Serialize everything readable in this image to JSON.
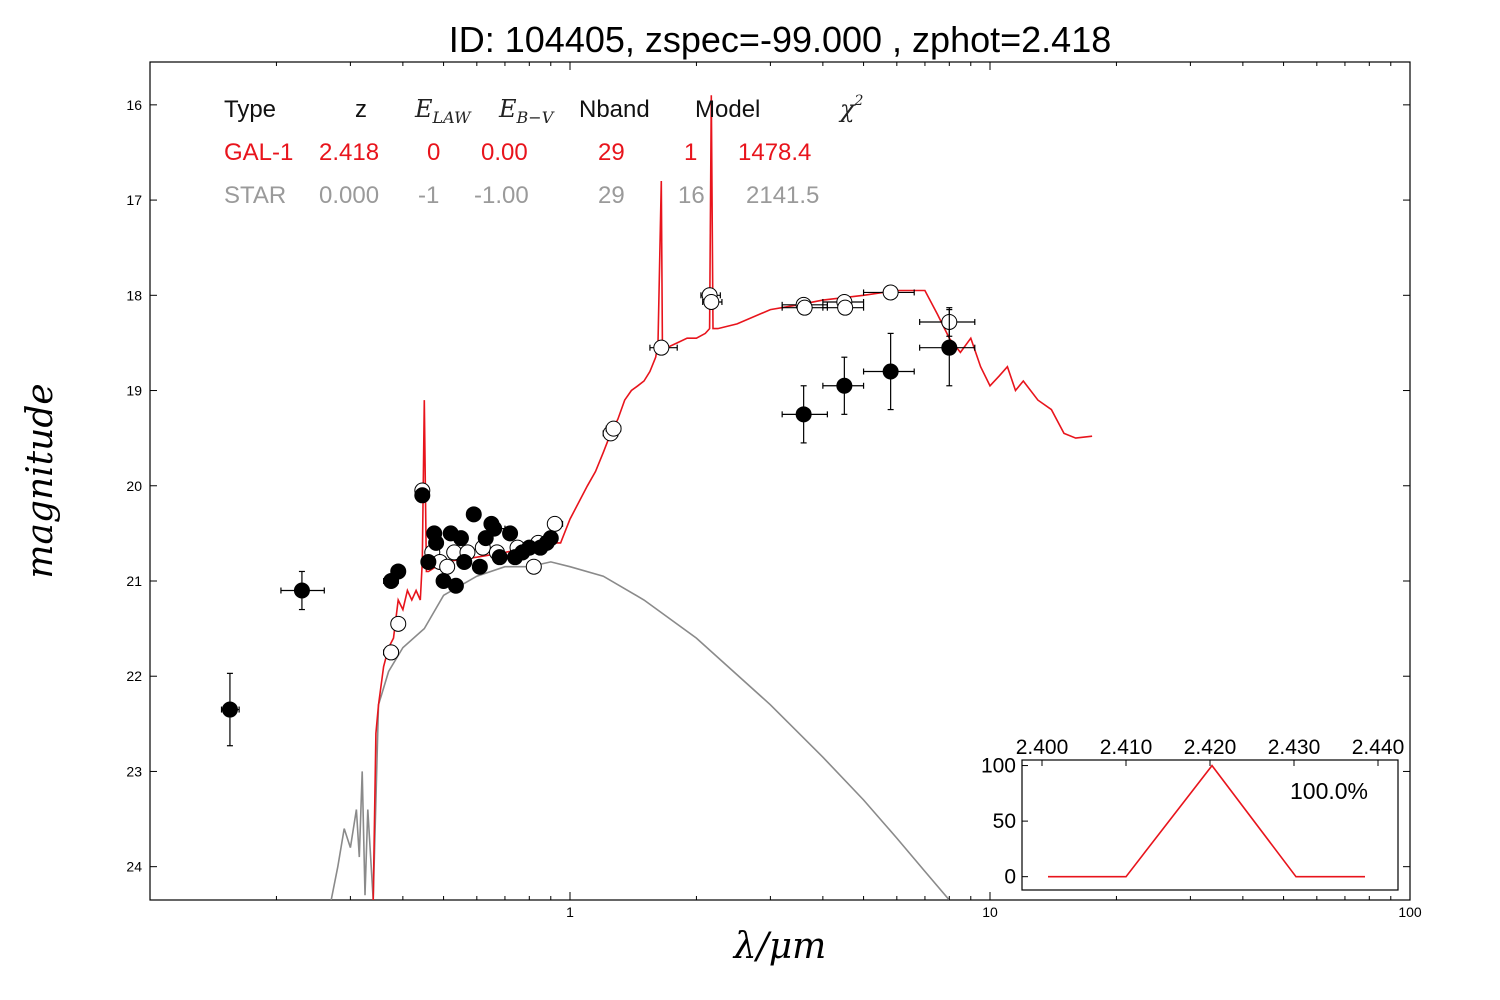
{
  "chart_data": {
    "type": "scatter",
    "title": "ID:  104405, zspec=-99.000 , zphot=2.418",
    "xlabel": "λ/μm",
    "ylabel": "magnitude",
    "x_scale": "log",
    "xlim": [
      0.1,
      100
    ],
    "ylim": [
      24.35,
      15.55
    ],
    "y_inverted": true,
    "x_ticks": [
      {
        "value": 1,
        "label": "1"
      },
      {
        "value": 10,
        "label": "10"
      },
      {
        "value": 100,
        "label": "100"
      }
    ],
    "y_ticks": [
      {
        "value": 16,
        "label": "16"
      },
      {
        "value": 17,
        "label": "17"
      },
      {
        "value": 18,
        "label": "18"
      },
      {
        "value": 19,
        "label": "19"
      },
      {
        "value": 20,
        "label": "20"
      },
      {
        "value": 21,
        "label": "21"
      },
      {
        "value": 22,
        "label": "22"
      },
      {
        "value": 23,
        "label": "23"
      },
      {
        "value": 24,
        "label": "24"
      }
    ],
    "colors": {
      "galaxy": "#e8141c",
      "star": "#8a8a8a",
      "star_text": "#9a9a9a",
      "points": "#000000"
    },
    "fit_table": {
      "headers": [
        "Type",
        "z",
        "E_LAW",
        "E_B−V",
        "Nband",
        "Model",
        "χ²"
      ],
      "rows": [
        {
          "type": "GAL-1",
          "z": "2.418",
          "elaw": "0",
          "ebv": "0.00",
          "nband": "29",
          "model": "1",
          "chi2": "1478.4",
          "color": "#e8141c"
        },
        {
          "type": "STAR",
          "z": "0.000",
          "elaw": "-1",
          "ebv": "-1.00",
          "nband": "29",
          "model": "16",
          "chi2": "2141.5",
          "color": "#9a9a9a"
        }
      ]
    },
    "galaxy_model_curve": [
      [
        0.34,
        24.35
      ],
      [
        0.345,
        22.6
      ],
      [
        0.35,
        22.3
      ],
      [
        0.36,
        21.9
      ],
      [
        0.37,
        21.7
      ],
      [
        0.38,
        21.6
      ],
      [
        0.39,
        21.2
      ],
      [
        0.4,
        21.3
      ],
      [
        0.41,
        21.1
      ],
      [
        0.42,
        21.2
      ],
      [
        0.43,
        21.1
      ],
      [
        0.44,
        21.2
      ],
      [
        0.445,
        20.8
      ],
      [
        0.45,
        19.1
      ],
      [
        0.455,
        20.9
      ],
      [
        0.46,
        20.9
      ],
      [
        0.5,
        20.8
      ],
      [
        0.6,
        20.75
      ],
      [
        0.7,
        20.7
      ],
      [
        0.8,
        20.65
      ],
      [
        0.9,
        20.6
      ],
      [
        0.95,
        20.6
      ],
      [
        1.0,
        20.35
      ],
      [
        1.1,
        20.0
      ],
      [
        1.15,
        19.85
      ],
      [
        1.2,
        19.65
      ],
      [
        1.25,
        19.45
      ],
      [
        1.3,
        19.3
      ],
      [
        1.35,
        19.1
      ],
      [
        1.4,
        19.0
      ],
      [
        1.45,
        18.95
      ],
      [
        1.5,
        18.9
      ],
      [
        1.55,
        18.8
      ],
      [
        1.6,
        18.65
      ],
      [
        1.62,
        18.5
      ],
      [
        1.65,
        16.8
      ],
      [
        1.66,
        18.5
      ],
      [
        1.7,
        18.55
      ],
      [
        1.8,
        18.5
      ],
      [
        1.9,
        18.45
      ],
      [
        2.0,
        18.45
      ],
      [
        2.1,
        18.4
      ],
      [
        2.15,
        18.35
      ],
      [
        2.17,
        15.9
      ],
      [
        2.19,
        18.35
      ],
      [
        2.25,
        18.35
      ],
      [
        2.5,
        18.3
      ],
      [
        3.0,
        18.15
      ],
      [
        3.5,
        18.1
      ],
      [
        4.0,
        18.05
      ],
      [
        5.0,
        18.0
      ],
      [
        6.0,
        17.95
      ],
      [
        7.0,
        17.95
      ],
      [
        7.5,
        18.2
      ],
      [
        8.0,
        18.45
      ],
      [
        8.5,
        18.6
      ],
      [
        9.0,
        18.45
      ],
      [
        9.5,
        18.75
      ],
      [
        10.0,
        18.95
      ],
      [
        10.5,
        18.85
      ],
      [
        11.0,
        18.75
      ],
      [
        11.5,
        19.0
      ],
      [
        12.0,
        18.9
      ],
      [
        13.0,
        19.1
      ],
      [
        14.0,
        19.2
      ],
      [
        15.0,
        19.45
      ],
      [
        16.0,
        19.5
      ],
      [
        17.5,
        19.48
      ]
    ],
    "star_model_curve": [
      [
        0.27,
        24.35
      ],
      [
        0.28,
        24.0
      ],
      [
        0.29,
        23.6
      ],
      [
        0.3,
        23.8
      ],
      [
        0.31,
        23.4
      ],
      [
        0.315,
        23.9
      ],
      [
        0.32,
        23.0
      ],
      [
        0.325,
        24.3
      ],
      [
        0.33,
        23.4
      ],
      [
        0.34,
        24.35
      ],
      [
        0.35,
        22.3
      ],
      [
        0.37,
        21.95
      ],
      [
        0.4,
        21.7
      ],
      [
        0.45,
        21.5
      ],
      [
        0.5,
        21.15
      ],
      [
        0.6,
        20.95
      ],
      [
        0.7,
        20.85
      ],
      [
        0.8,
        20.85
      ],
      [
        0.9,
        20.8
      ],
      [
        1.0,
        20.85
      ],
      [
        1.2,
        20.95
      ],
      [
        1.5,
        21.2
      ],
      [
        2.0,
        21.6
      ],
      [
        3.0,
        22.3
      ],
      [
        4.0,
        22.85
      ],
      [
        5.0,
        23.3
      ],
      [
        6.0,
        23.7
      ],
      [
        7.0,
        24.05
      ],
      [
        8.0,
        24.35
      ]
    ],
    "filled_points": [
      {
        "x": 0.155,
        "y": 22.35,
        "xerr": [
          0.148,
          0.163
        ],
        "yerr": 0.38
      },
      {
        "x": 0.23,
        "y": 21.1,
        "xerr": [
          0.205,
          0.26
        ],
        "yerr": 0.2
      },
      {
        "x": 0.375,
        "y": 21.0,
        "xerr": [
          0.36,
          0.39
        ],
        "yerr": 0.05
      },
      {
        "x": 0.39,
        "y": 20.9,
        "xerr": [
          0.38,
          0.4
        ],
        "yerr": 0.05
      },
      {
        "x": 0.445,
        "y": 20.1,
        "xerr": [
          0.44,
          0.45
        ],
        "yerr": 0.04
      },
      {
        "x": 0.46,
        "y": 20.8,
        "xerr": [
          0.45,
          0.47
        ],
        "yerr": 0.05
      },
      {
        "x": 0.475,
        "y": 20.5,
        "xerr": [
          0.46,
          0.49
        ],
        "yerr": 0.07
      },
      {
        "x": 0.48,
        "y": 20.6,
        "xerr": [
          0.47,
          0.49
        ],
        "yerr": 0.05
      },
      {
        "x": 0.5,
        "y": 21.0,
        "xerr": [
          0.49,
          0.51
        ],
        "yerr": 0.05
      },
      {
        "x": 0.52,
        "y": 20.5,
        "xerr": [
          0.51,
          0.53
        ],
        "yerr": 0.05
      },
      {
        "x": 0.535,
        "y": 21.05,
        "xerr": [
          0.525,
          0.545
        ],
        "yerr": 0.05
      },
      {
        "x": 0.55,
        "y": 20.55,
        "xerr": [
          0.54,
          0.56
        ],
        "yerr": 0.05
      },
      {
        "x": 0.56,
        "y": 20.8,
        "xerr": [
          0.55,
          0.57
        ],
        "yerr": 0.05
      },
      {
        "x": 0.59,
        "y": 20.3,
        "xerr": [
          0.575,
          0.605
        ],
        "yerr": 0.05
      },
      {
        "x": 0.61,
        "y": 20.85,
        "xerr": [
          0.6,
          0.62
        ],
        "yerr": 0.05
      },
      {
        "x": 0.63,
        "y": 20.55,
        "xerr": [
          0.615,
          0.645
        ],
        "yerr": 0.05
      },
      {
        "x": 0.65,
        "y": 20.4,
        "xerr": [
          0.63,
          0.67
        ],
        "yerr": 0.05
      },
      {
        "x": 0.66,
        "y": 20.45,
        "xerr": [
          0.64,
          0.7
        ],
        "yerr": 0.05
      },
      {
        "x": 0.68,
        "y": 20.75,
        "xerr": [
          0.66,
          0.7
        ],
        "yerr": 0.05
      },
      {
        "x": 0.72,
        "y": 20.5,
        "xerr": [
          0.7,
          0.74
        ],
        "yerr": 0.05
      },
      {
        "x": 0.74,
        "y": 20.75,
        "xerr": [
          0.72,
          0.76
        ],
        "yerr": 0.05
      },
      {
        "x": 0.77,
        "y": 20.7,
        "xerr": [
          0.75,
          0.79
        ],
        "yerr": 0.05
      },
      {
        "x": 0.8,
        "y": 20.65,
        "xerr": [
          0.78,
          0.82
        ],
        "yerr": 0.05
      },
      {
        "x": 0.85,
        "y": 20.65,
        "xerr": [
          0.83,
          0.87
        ],
        "yerr": 0.05
      },
      {
        "x": 0.88,
        "y": 20.6,
        "xerr": [
          0.86,
          0.9
        ],
        "yerr": 0.05
      },
      {
        "x": 0.9,
        "y": 20.55,
        "xerr": [
          0.88,
          0.92
        ],
        "yerr": 0.05
      },
      {
        "x": 3.6,
        "y": 19.25,
        "xerr": [
          3.2,
          4.1
        ],
        "yerr": 0.3
      },
      {
        "x": 4.5,
        "y": 18.95,
        "xerr": [
          4.0,
          5.0
        ],
        "yerr": 0.3
      },
      {
        "x": 5.8,
        "y": 18.8,
        "xerr": [
          5.0,
          6.6
        ],
        "yerr": 0.4
      },
      {
        "x": 8.0,
        "y": 18.55,
        "xerr": [
          6.8,
          9.2
        ],
        "yerr": 0.4
      }
    ],
    "open_points": [
      {
        "x": 0.375,
        "y": 21.75,
        "xerr": [
          0.36,
          0.39
        ],
        "yerr": 0.05
      },
      {
        "x": 0.39,
        "y": 21.45,
        "xerr": [
          0.38,
          0.4
        ],
        "yerr": 0.05
      },
      {
        "x": 0.445,
        "y": 20.05,
        "xerr": [
          0.44,
          0.45
        ],
        "yerr": 0.04
      },
      {
        "x": 0.47,
        "y": 20.7,
        "xerr": [
          0.46,
          0.48
        ],
        "yerr": 0.05
      },
      {
        "x": 0.49,
        "y": 20.8,
        "xerr": [
          0.48,
          0.5
        ],
        "yerr": 0.05
      },
      {
        "x": 0.51,
        "y": 20.85,
        "xerr": [
          0.5,
          0.52
        ],
        "yerr": 0.05
      },
      {
        "x": 0.53,
        "y": 20.7,
        "xerr": [
          0.52,
          0.54
        ],
        "yerr": 0.05
      },
      {
        "x": 0.57,
        "y": 20.7,
        "xerr": [
          0.56,
          0.58
        ],
        "yerr": 0.05
      },
      {
        "x": 0.62,
        "y": 20.65,
        "xerr": [
          0.61,
          0.63
        ],
        "yerr": 0.05
      },
      {
        "x": 0.67,
        "y": 20.7,
        "xerr": [
          0.66,
          0.68
        ],
        "yerr": 0.05
      },
      {
        "x": 0.75,
        "y": 20.65,
        "xerr": [
          0.74,
          0.76
        ],
        "yerr": 0.05
      },
      {
        "x": 0.82,
        "y": 20.85,
        "xerr": [
          0.8,
          0.84
        ],
        "yerr": 0.05
      },
      {
        "x": 0.84,
        "y": 20.6,
        "xerr": [
          0.82,
          0.86
        ],
        "yerr": 0.05
      },
      {
        "x": 0.92,
        "y": 20.4,
        "xerr": [
          0.9,
          0.96
        ],
        "yerr": 0.05
      },
      {
        "x": 1.25,
        "y": 19.45,
        "xerr": [
          1.2,
          1.3
        ],
        "yerr": 0.04
      },
      {
        "x": 1.27,
        "y": 19.4,
        "xerr": [
          1.22,
          1.32
        ],
        "yerr": 0.04
      },
      {
        "x": 1.65,
        "y": 18.55,
        "xerr": [
          1.55,
          1.8
        ],
        "yerr": 0.04
      },
      {
        "x": 2.15,
        "y": 18.0,
        "xerr": [
          2.05,
          2.28
        ],
        "yerr": 0.04
      },
      {
        "x": 2.17,
        "y": 18.07,
        "xerr": [
          2.07,
          2.3
        ],
        "yerr": 0.04
      },
      {
        "x": 3.6,
        "y": 18.1,
        "xerr": [
          3.2,
          4.1
        ],
        "yerr": 0.04
      },
      {
        "x": 3.62,
        "y": 18.13,
        "xerr": [
          3.2,
          4.1
        ],
        "yerr": 0.04
      },
      {
        "x": 4.5,
        "y": 18.07,
        "xerr": [
          4.0,
          5.0
        ],
        "yerr": 0.04
      },
      {
        "x": 4.52,
        "y": 18.13,
        "xerr": [
          4.0,
          5.0
        ],
        "yerr": 0.04
      },
      {
        "x": 5.8,
        "y": 17.97,
        "xerr": [
          5.0,
          6.6
        ],
        "yerr": 0.04
      },
      {
        "x": 8.0,
        "y": 18.28,
        "xerr": [
          6.8,
          9.2
        ],
        "yerr": 0.15
      }
    ],
    "inset": {
      "type": "line",
      "x_ticks": [
        "2.400",
        "2.410",
        "2.420",
        "2.430",
        "2.440"
      ],
      "xlim": [
        2.4,
        2.44
      ],
      "y_ticks": [
        "100",
        "50",
        "0"
      ],
      "ylim": [
        -12,
        105
      ],
      "x": [
        2.4,
        2.41,
        2.42,
        2.43,
        2.44
      ],
      "y": [
        0,
        0,
        100,
        0,
        0
      ],
      "annotation": "100.0%"
    }
  }
}
